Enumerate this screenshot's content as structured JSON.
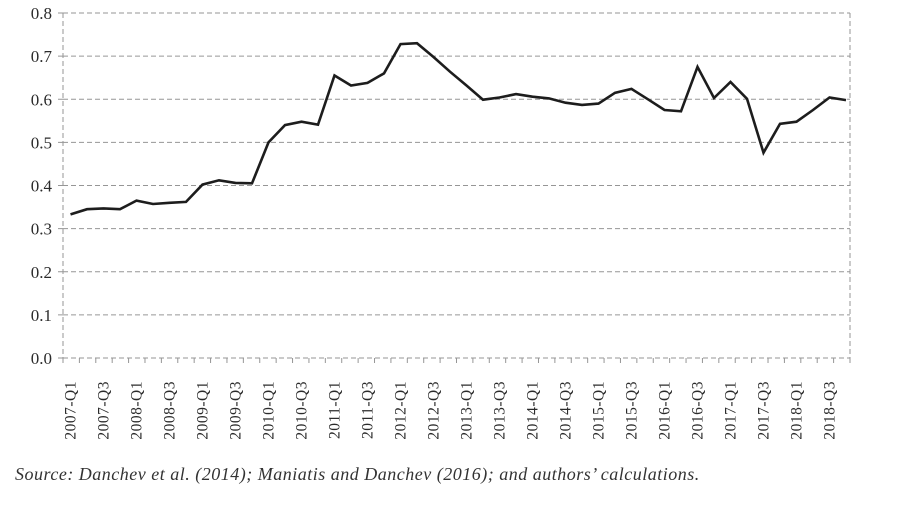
{
  "chart_data": {
    "type": "line",
    "title": "",
    "categories": [
      "2007-Q1",
      "2007-Q2",
      "2007-Q3",
      "2007-Q4",
      "2008-Q1",
      "2008-Q2",
      "2008-Q3",
      "2008-Q4",
      "2009-Q1",
      "2009-Q2",
      "2009-Q3",
      "2009-Q4",
      "2010-Q1",
      "2010-Q2",
      "2010-Q3",
      "2010-Q4",
      "2011-Q1",
      "2011-Q2",
      "2011-Q3",
      "2011-Q4",
      "2012-Q1",
      "2012-Q2",
      "2012-Q3",
      "2012-Q4",
      "2013-Q1",
      "2013-Q2",
      "2013-Q3",
      "2013-Q4",
      "2014-Q1",
      "2014-Q2",
      "2014-Q3",
      "2014-Q4",
      "2015-Q1",
      "2015-Q2",
      "2015-Q3",
      "2015-Q4",
      "2016-Q1",
      "2016-Q2",
      "2016-Q3",
      "2016-Q4",
      "2017-Q1",
      "2017-Q2",
      "2017-Q3",
      "2017-Q4",
      "2018-Q1",
      "2018-Q2",
      "2018-Q3",
      "2018-Q4"
    ],
    "values": [
      0.333,
      0.345,
      0.347,
      0.345,
      0.365,
      0.357,
      0.36,
      0.362,
      0.402,
      0.412,
      0.406,
      0.405,
      0.5,
      0.54,
      0.548,
      0.541,
      0.655,
      0.632,
      0.638,
      0.66,
      0.728,
      0.73,
      0.698,
      0.664,
      0.632,
      0.599,
      0.604,
      0.612,
      0.606,
      0.602,
      0.592,
      0.587,
      0.59,
      0.615,
      0.624,
      0.6,
      0.575,
      0.572,
      0.675,
      0.603,
      0.64,
      0.601,
      0.476,
      0.543,
      0.548,
      0.575,
      0.604,
      0.598
    ],
    "xlabel": "",
    "ylabel": "",
    "ylim": [
      0.0,
      0.8
    ],
    "y_ticks": [
      "0.0",
      "0.1",
      "0.2",
      "0.3",
      "0.4",
      "0.5",
      "0.6",
      "0.7",
      "0.8"
    ],
    "x_label_interval": 2,
    "grid": "horizontal-dashed",
    "legend": "none",
    "line_color": "#1d1d1d",
    "grid_color": "#969696",
    "label_color": "#2b2b2b"
  },
  "source_note": "Source: Danchev et al. (2014); Maniatis and Danchev (2016); and authors’ calculations."
}
